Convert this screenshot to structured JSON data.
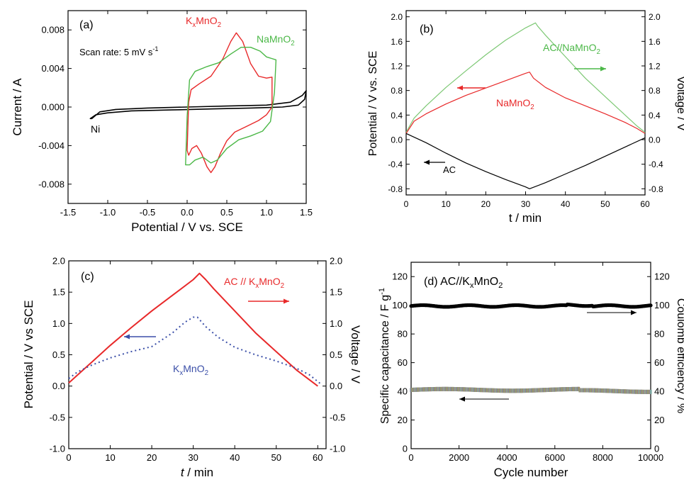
{
  "chart_data": [
    {
      "panel": "(a)",
      "type": "line",
      "xlabel": "Potential / V vs. SCE",
      "ylabel": "Current / A",
      "xlim": [
        -1.5,
        1.5
      ],
      "ylim": [
        -0.01,
        0.01
      ],
      "xticks": [
        -1.5,
        -1.0,
        -0.5,
        0.0,
        0.5,
        1.0,
        1.5
      ],
      "yticks": [
        -0.008,
        -0.004,
        0.0,
        0.004,
        0.008
      ],
      "xtick_labels": [
        "-1.5",
        "-1.0",
        "-0.5",
        "0.0",
        "0.5",
        "1.0",
        "1.5"
      ],
      "ytick_labels": [
        "-0.008",
        "-0.004",
        "0.000",
        "0.004",
        "0.008"
      ],
      "annotation": "Scan rate: 5 mV s",
      "annotation_sup": "-1",
      "series": [
        {
          "name": "Ni",
          "color": "#000000",
          "closed": true,
          "points": [
            [
              -1.2,
              -0.0012
            ],
            [
              -1.1,
              -0.0005
            ],
            [
              -0.9,
              -0.00025
            ],
            [
              -0.5,
              -0.0001
            ],
            [
              0.0,
              0.0
            ],
            [
              0.5,
              0.0001
            ],
            [
              1.0,
              0.0002
            ],
            [
              1.3,
              0.0005
            ],
            [
              1.45,
              0.0012
            ],
            [
              1.5,
              0.0017
            ],
            [
              1.48,
              0.0008
            ],
            [
              1.4,
              0.0002
            ],
            [
              1.2,
              0.0
            ],
            [
              0.8,
              -0.0001
            ],
            [
              0.3,
              -0.0002
            ],
            [
              -0.2,
              -0.0003
            ],
            [
              -0.7,
              -0.0004
            ],
            [
              -1.0,
              -0.0006
            ],
            [
              -1.15,
              -0.0008
            ],
            [
              -1.22,
              -0.0012
            ]
          ]
        },
        {
          "name": "K_xMnO_2",
          "color": "#e8292a",
          "closed": true,
          "points": [
            [
              0.0,
              -0.0045
            ],
            [
              0.02,
              0.0005
            ],
            [
              0.05,
              0.0018
            ],
            [
              0.15,
              0.0024
            ],
            [
              0.3,
              0.0032
            ],
            [
              0.45,
              0.005
            ],
            [
              0.55,
              0.0068
            ],
            [
              0.62,
              0.0077
            ],
            [
              0.7,
              0.0068
            ],
            [
              0.8,
              0.0045
            ],
            [
              0.9,
              0.0032
            ],
            [
              1.0,
              0.003
            ],
            [
              1.07,
              0.0031
            ],
            [
              1.07,
              0.0
            ],
            [
              1.0,
              -0.0008
            ],
            [
              0.9,
              -0.0014
            ],
            [
              0.75,
              -0.002
            ],
            [
              0.6,
              -0.0026
            ],
            [
              0.5,
              -0.0035
            ],
            [
              0.42,
              -0.0048
            ],
            [
              0.35,
              -0.0062
            ],
            [
              0.3,
              -0.0068
            ],
            [
              0.25,
              -0.0062
            ],
            [
              0.18,
              -0.0048
            ],
            [
              0.12,
              -0.004
            ],
            [
              0.06,
              -0.0043
            ],
            [
              0.02,
              -0.005
            ],
            [
              0.0,
              -0.0045
            ]
          ]
        },
        {
          "name": "NaMnO_2",
          "color": "#4cb848",
          "closed": true,
          "points": [
            [
              -0.02,
              -0.006
            ],
            [
              0.0,
              -0.001
            ],
            [
              0.03,
              0.0028
            ],
            [
              0.1,
              0.0037
            ],
            [
              0.25,
              0.0042
            ],
            [
              0.4,
              0.0046
            ],
            [
              0.55,
              0.0055
            ],
            [
              0.68,
              0.0062
            ],
            [
              0.8,
              0.0062
            ],
            [
              0.92,
              0.0058
            ],
            [
              1.0,
              0.0052
            ],
            [
              1.12,
              0.0049
            ],
            [
              1.1,
              0.0015
            ],
            [
              1.05,
              -0.0015
            ],
            [
              0.95,
              -0.0025
            ],
            [
              0.8,
              -0.003
            ],
            [
              0.65,
              -0.0034
            ],
            [
              0.5,
              -0.0043
            ],
            [
              0.38,
              -0.0055
            ],
            [
              0.3,
              -0.0058
            ],
            [
              0.2,
              -0.0052
            ],
            [
              0.1,
              -0.0055
            ],
            [
              0.03,
              -0.006
            ],
            [
              -0.02,
              -0.006
            ]
          ]
        }
      ],
      "labels": [
        {
          "text": "(a)"
        },
        {
          "text": "K",
          "sub": "x",
          "text2": "MnO",
          "sub2": "2",
          "color": "#e8292a"
        },
        {
          "text": "NaMnO",
          "sub": "2",
          "color": "#4cb848"
        },
        {
          "text": "Ni",
          "color": "#000000"
        }
      ]
    },
    {
      "panel": "(b)",
      "type": "line",
      "xlabel": "t / min",
      "ylabel": "Potential / V vs. SCE",
      "y2label": "Voltage / V",
      "xlim": [
        0,
        60
      ],
      "ylim": [
        -0.9,
        2.1
      ],
      "y2lim": [
        -0.9,
        2.1
      ],
      "xticks": [
        0,
        10,
        20,
        30,
        40,
        50,
        60
      ],
      "yticks": [
        -0.8,
        -0.4,
        0.0,
        0.4,
        0.8,
        1.2,
        1.6,
        2.0
      ],
      "ytick_labels": [
        "-0.8",
        "-0.4",
        "0.0",
        "0.4",
        "0.8",
        "1.2",
        "1.6",
        "2.0"
      ],
      "series": [
        {
          "name": "AC//NaMnO_2",
          "color": "#7dc874",
          "points": [
            [
              0,
              0.12
            ],
            [
              2,
              0.35
            ],
            [
              5,
              0.55
            ],
            [
              10,
              0.85
            ],
            [
              15,
              1.12
            ],
            [
              20,
              1.38
            ],
            [
              25,
              1.62
            ],
            [
              30,
              1.82
            ],
            [
              32.5,
              1.9
            ],
            [
              33,
              1.85
            ],
            [
              35,
              1.7
            ],
            [
              40,
              1.35
            ],
            [
              45,
              1.0
            ],
            [
              50,
              0.7
            ],
            [
              55,
              0.4
            ],
            [
              58,
              0.22
            ],
            [
              60,
              0.12
            ]
          ]
        },
        {
          "name": "NaMnO_2",
          "color": "#e8292a",
          "points": [
            [
              0,
              0.1
            ],
            [
              2,
              0.3
            ],
            [
              5,
              0.42
            ],
            [
              10,
              0.58
            ],
            [
              15,
              0.72
            ],
            [
              20,
              0.84
            ],
            [
              25,
              0.96
            ],
            [
              30,
              1.08
            ],
            [
              31,
              1.1
            ],
            [
              32,
              1.0
            ],
            [
              35,
              0.85
            ],
            [
              40,
              0.68
            ],
            [
              45,
              0.55
            ],
            [
              50,
              0.42
            ],
            [
              55,
              0.28
            ],
            [
              58,
              0.18
            ],
            [
              60,
              0.1
            ]
          ]
        },
        {
          "name": "AC",
          "color": "#000000",
          "points": [
            [
              0,
              0.1
            ],
            [
              5,
              -0.05
            ],
            [
              10,
              -0.22
            ],
            [
              15,
              -0.38
            ],
            [
              20,
              -0.52
            ],
            [
              25,
              -0.65
            ],
            [
              30,
              -0.77
            ],
            [
              31,
              -0.8
            ],
            [
              35,
              -0.7
            ],
            [
              40,
              -0.56
            ],
            [
              45,
              -0.42
            ],
            [
              50,
              -0.27
            ],
            [
              55,
              -0.12
            ],
            [
              60,
              0.03
            ]
          ]
        }
      ],
      "labels": [
        {
          "text": "(b)"
        },
        {
          "text": "AC//NaMnO",
          "sub": "2",
          "color": "#4cb848"
        },
        {
          "text": "NaMnO",
          "sub": "2",
          "color": "#e8292a"
        },
        {
          "text": "AC",
          "color": "#000000"
        }
      ]
    },
    {
      "panel": "(c)",
      "type": "line",
      "xlabel_italic": "t",
      "xlabel_rest": " / min",
      "ylabel": "Potential / V vs SCE",
      "y2label": "Voltage / V",
      "xlim": [
        0,
        62
      ],
      "ylim": [
        -1.0,
        2.0
      ],
      "y2lim": [
        -1.0,
        2.0
      ],
      "xticks": [
        0,
        10,
        20,
        30,
        40,
        50,
        60
      ],
      "yticks": [
        -1.0,
        -0.5,
        0.0,
        0.5,
        1.0,
        1.5,
        2.0
      ],
      "ytick_labels": [
        "-1.0",
        "-0.5",
        "0.0",
        "0.5",
        "1.0",
        "1.5",
        "2.0"
      ],
      "series": [
        {
          "name": "AC // K_xMnO_2",
          "color": "#e8292a",
          "style": "solid",
          "points": [
            [
              0,
              0.05
            ],
            [
              5,
              0.35
            ],
            [
              10,
              0.65
            ],
            [
              15,
              0.93
            ],
            [
              20,
              1.2
            ],
            [
              25,
              1.45
            ],
            [
              30,
              1.7
            ],
            [
              31.5,
              1.8
            ],
            [
              33,
              1.7
            ],
            [
              35,
              1.55
            ],
            [
              40,
              1.2
            ],
            [
              45,
              0.85
            ],
            [
              50,
              0.55
            ],
            [
              55,
              0.25
            ],
            [
              60,
              0.0
            ]
          ]
        },
        {
          "name": "K_xMnO_2",
          "color": "#3b4fa8",
          "style": "dotted",
          "points": [
            [
              0,
              0.12
            ],
            [
              2,
              0.22
            ],
            [
              5,
              0.32
            ],
            [
              10,
              0.45
            ],
            [
              15,
              0.55
            ],
            [
              20,
              0.63
            ],
            [
              25,
              0.85
            ],
            [
              28,
              1.02
            ],
            [
              30,
              1.1
            ],
            [
              31,
              1.1
            ],
            [
              33,
              0.95
            ],
            [
              36,
              0.78
            ],
            [
              40,
              0.62
            ],
            [
              45,
              0.5
            ],
            [
              50,
              0.4
            ],
            [
              55,
              0.28
            ],
            [
              58,
              0.18
            ],
            [
              61,
              0.02
            ]
          ]
        }
      ],
      "labels": [
        {
          "text": "(c)"
        },
        {
          "text": "AC // K",
          "sub": "x",
          "text2": "MnO",
          "sub2": "2",
          "color": "#e8292a"
        },
        {
          "text": "K",
          "sub": "x",
          "text2": "MnO",
          "sub2": "2",
          "color": "#3b4fa8"
        }
      ]
    },
    {
      "panel": "(d)",
      "type": "scatter",
      "xlabel": "Cycle number",
      "ylabel": "Specific capacitance / F g",
      "ylabel_sup": "-1",
      "y2label": "Coulomb efficiency / %",
      "xlim": [
        0,
        10000
      ],
      "ylim": [
        0,
        130
      ],
      "y2lim": [
        0,
        130
      ],
      "xticks": [
        0,
        2000,
        4000,
        6000,
        8000,
        10000
      ],
      "yticks": [
        0,
        20,
        40,
        60,
        80,
        100,
        120
      ],
      "title_prefix": "(d) AC//K",
      "title_sub": "x",
      "title_mid": "MnO",
      "title_sub2": "2",
      "series": [
        {
          "name": "Coulomb efficiency",
          "color": "#000000",
          "axis": "right",
          "approx_value": 99.5
        },
        {
          "name": "Specific capacitance",
          "color": "#8a7d70",
          "axis": "left",
          "approx_value": 41
        }
      ]
    }
  ]
}
